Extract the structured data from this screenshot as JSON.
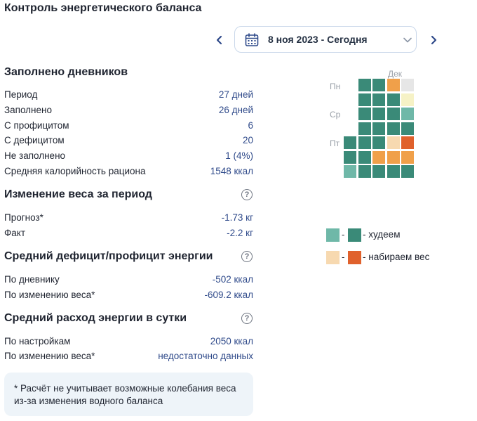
{
  "header": {
    "title": "Контроль энергетического баланса",
    "date_value": "8 ноя 2023 - Сегодня",
    "calendar_icon": "calendar-icon",
    "prev_icon": "chevron-left-icon",
    "next_icon": "chevron-right-icon",
    "dropdown_icon": "chevron-down-icon"
  },
  "diaries": {
    "title": "Заполнено дневников",
    "rows": [
      {
        "label": "Период",
        "value": "27 дней"
      },
      {
        "label": "Заполнено",
        "value": "26 дней"
      },
      {
        "label": "С профицитом",
        "value": "6"
      },
      {
        "label": "С дефицитом",
        "value": "20"
      },
      {
        "label": "Не заполнено",
        "value": "1 (4%)"
      },
      {
        "label": "Средняя калорийность рациона",
        "value": "1548 ккал"
      }
    ]
  },
  "weight": {
    "title": "Изменение веса за период",
    "rows": [
      {
        "label": "Прогноз*",
        "value": "-1.73 кг"
      },
      {
        "label": "Факт",
        "value": "-2.2 кг"
      }
    ]
  },
  "deficit": {
    "title": "Средний дефицит/профицит энергии",
    "rows": [
      {
        "label": "По дневнику",
        "value": "-502 ккал"
      },
      {
        "label": "По изменению веса*",
        "value": "-609.2 ккал"
      }
    ]
  },
  "expense": {
    "title": "Средний расход энергии в сутки",
    "rows": [
      {
        "label": "По настройкам",
        "value": "2050 ккал"
      },
      {
        "label": "По изменению веса*",
        "value": "недостаточно данных"
      }
    ]
  },
  "help_glyph": "?",
  "note": "* Расчёт не учитывает возможные колебания веса из-за изменения водного баланса",
  "calendar": {
    "month_label": "Дек",
    "day_labels": [
      "Пн",
      "Ср",
      "Пт"
    ],
    "colors": {
      "loss_light": "#6fb8a8",
      "loss_dark": "#3a8a78",
      "gain_light": "#f7d9b0",
      "gain_mid": "#f0a04a",
      "gain_dark": "#e0612c",
      "pale_yellow": "#f6f2c6",
      "empty": "#e6e6e6"
    },
    "weeks": [
      [
        "",
        "",
        "",
        "",
        "loss_dark",
        "loss_dark",
        "loss_light"
      ],
      [
        "loss_dark",
        "loss_dark",
        "loss_dark",
        "loss_dark",
        "loss_dark",
        "loss_dark",
        "loss_dark"
      ],
      [
        "loss_dark",
        "loss_dark",
        "loss_dark",
        "loss_dark",
        "loss_dark",
        "gain_mid",
        "loss_dark"
      ],
      [
        "gain_mid",
        "loss_dark",
        "loss_dark",
        "loss_dark",
        "gain_light",
        "gain_mid",
        "loss_dark"
      ],
      [
        "empty",
        "pale_yellow",
        "loss_light",
        "loss_dark",
        "gain_dark",
        "gain_mid",
        "loss_dark"
      ]
    ]
  },
  "legend": {
    "loss_label": "- худеем",
    "gain_label": "- набираем вес",
    "dash": "-"
  }
}
